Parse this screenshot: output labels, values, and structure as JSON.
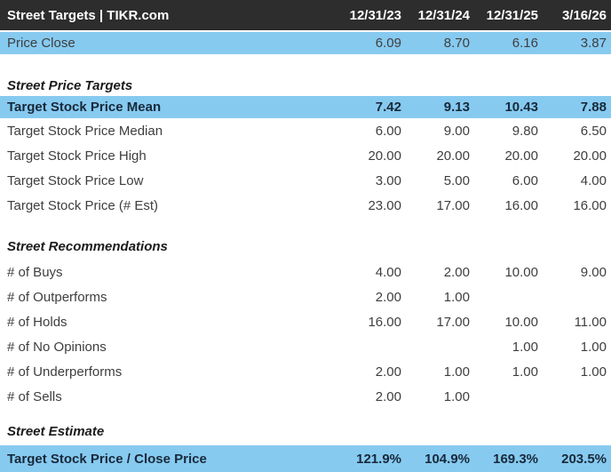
{
  "header": {
    "title": "Street Targets | TIKR.com",
    "columns": [
      "12/31/23",
      "12/31/24",
      "12/31/25",
      "3/16/26"
    ]
  },
  "colors": {
    "header_bg": "#2d2d2d",
    "header_text": "#ffffff",
    "highlight": "#87CAF0",
    "row_text": "#3e3e3e",
    "emphasis_text": "#17293a"
  },
  "price_close": {
    "label": "Price Close",
    "values": [
      "6.09",
      "8.70",
      "6.16",
      "3.87"
    ]
  },
  "sections": [
    {
      "title": "Street Price Targets",
      "rows": [
        {
          "label": "Target Stock Price Mean",
          "values": [
            "7.42",
            "9.13",
            "10.43",
            "7.88"
          ],
          "highlight": true
        },
        {
          "label": "Target Stock Price Median",
          "values": [
            "6.00",
            "9.00",
            "9.80",
            "6.50"
          ]
        },
        {
          "label": "Target Stock Price High",
          "values": [
            "20.00",
            "20.00",
            "20.00",
            "20.00"
          ]
        },
        {
          "label": "Target Stock Price Low",
          "values": [
            "3.00",
            "5.00",
            "6.00",
            "4.00"
          ]
        },
        {
          "label": "Target Stock Price (# Est)",
          "values": [
            "23.00",
            "17.00",
            "16.00",
            "16.00"
          ]
        }
      ]
    },
    {
      "title": "Street Recommendations",
      "rows": [
        {
          "label": "# of Buys",
          "values": [
            "4.00",
            "2.00",
            "10.00",
            "9.00"
          ]
        },
        {
          "label": "# of Outperforms",
          "values": [
            "2.00",
            "1.00",
            "",
            ""
          ]
        },
        {
          "label": "# of Holds",
          "values": [
            "16.00",
            "17.00",
            "10.00",
            "11.00"
          ]
        },
        {
          "label": "# of No Opinions",
          "values": [
            "",
            "",
            "1.00",
            "1.00"
          ]
        },
        {
          "label": "# of Underperforms",
          "values": [
            "2.00",
            "1.00",
            "1.00",
            "1.00"
          ]
        },
        {
          "label": "# of Sells",
          "values": [
            "2.00",
            "1.00",
            "",
            ""
          ]
        }
      ]
    },
    {
      "title": "Street Estimate",
      "rows": [
        {
          "label": "Target Stock Price / Close Price",
          "values": [
            "121.9%",
            "104.9%",
            "169.3%",
            "203.5%"
          ],
          "highlight": true
        }
      ]
    }
  ]
}
